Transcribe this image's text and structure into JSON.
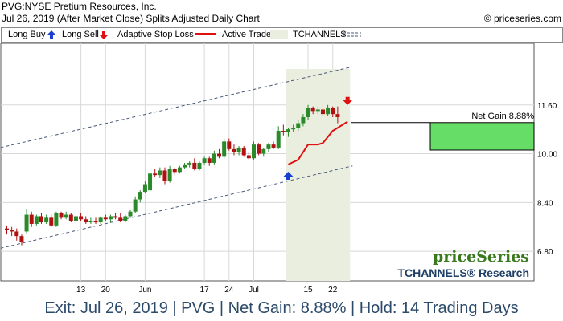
{
  "header": {
    "line1": "PVG:NYSE Pretium Resources, Inc.",
    "line2": "Jul 26, 2019 (After Market Close)  Splits Adjusted Daily Chart",
    "copyright": "© priceseries.com"
  },
  "legend": {
    "long_buy": "Long Buy",
    "long_sell": "Long Sell",
    "adaptive_stop": "Adaptive Stop Loss",
    "active_trade": "Active Trade",
    "tchannels": "TCHANNELS"
  },
  "branding": {
    "logo_text": "priceSeries",
    "research_text": "TCHANNELS® Research"
  },
  "footer": {
    "text": "Exit: Jul 26, 2019 | PVG | Net Gain: 8.88% | Hold: 14 Trading Days"
  },
  "colors": {
    "bull": "#2a8a2a",
    "bear": "#b01010",
    "stop": "#e01010",
    "buy_arrow": "#1a3fd0",
    "sell_arrow": "#e01010",
    "active_shade": "#e9eedf",
    "gain_box": "#66dd66",
    "channel": "#4a5a78"
  },
  "chart_data": {
    "type": "candlestick",
    "title": "PVG:NYSE Pretium Resources, Inc.",
    "y_ticks": [
      6.8,
      8.4,
      10.0,
      11.6
    ],
    "y_tick_labels": [
      "6.80",
      "8.40",
      "10.00",
      "11.60"
    ],
    "ylim": [
      5.83,
      13.62
    ],
    "x_ticks": [
      {
        "label": "13",
        "index": 15
      },
      {
        "label": "20",
        "index": 20
      },
      {
        "label": "Jun",
        "index": 28
      },
      {
        "label": "17",
        "index": 40
      },
      {
        "label": "24",
        "index": 45
      },
      {
        "label": "Jul",
        "index": 50
      },
      {
        "label": "15",
        "index": 61
      },
      {
        "label": "22",
        "index": 66
      }
    ],
    "grid": true,
    "candles": [
      {
        "o": 7.55,
        "h": 7.65,
        "l": 7.35,
        "c": 7.5
      },
      {
        "o": 7.5,
        "h": 7.6,
        "l": 7.3,
        "c": 7.45
      },
      {
        "o": 7.45,
        "h": 7.55,
        "l": 7.15,
        "c": 7.3
      },
      {
        "o": 7.3,
        "h": 7.35,
        "l": 7.0,
        "c": 7.1
      },
      {
        "o": 7.45,
        "h": 8.2,
        "l": 7.4,
        "c": 8.0
      },
      {
        "o": 8.0,
        "h": 8.1,
        "l": 7.6,
        "c": 7.7
      },
      {
        "o": 7.7,
        "h": 8.0,
        "l": 7.65,
        "c": 7.95
      },
      {
        "o": 7.95,
        "h": 8.05,
        "l": 7.7,
        "c": 7.75
      },
      {
        "o": 7.75,
        "h": 8.0,
        "l": 7.7,
        "c": 7.9
      },
      {
        "o": 7.9,
        "h": 8.0,
        "l": 7.6,
        "c": 7.65
      },
      {
        "o": 7.65,
        "h": 8.1,
        "l": 7.6,
        "c": 8.05
      },
      {
        "o": 8.05,
        "h": 8.1,
        "l": 7.85,
        "c": 7.9
      },
      {
        "o": 7.9,
        "h": 8.1,
        "l": 7.85,
        "c": 8.0
      },
      {
        "o": 8.0,
        "h": 8.05,
        "l": 7.75,
        "c": 7.8
      },
      {
        "o": 7.8,
        "h": 8.0,
        "l": 7.7,
        "c": 7.95
      },
      {
        "o": 7.95,
        "h": 8.05,
        "l": 7.8,
        "c": 7.85
      },
      {
        "o": 7.85,
        "h": 7.95,
        "l": 7.7,
        "c": 7.75
      },
      {
        "o": 7.75,
        "h": 7.9,
        "l": 7.7,
        "c": 7.8
      },
      {
        "o": 7.8,
        "h": 7.9,
        "l": 7.7,
        "c": 7.75
      },
      {
        "o": 7.75,
        "h": 7.95,
        "l": 7.7,
        "c": 7.9
      },
      {
        "o": 7.9,
        "h": 8.0,
        "l": 7.8,
        "c": 7.85
      },
      {
        "o": 7.85,
        "h": 8.0,
        "l": 7.75,
        "c": 7.95
      },
      {
        "o": 7.95,
        "h": 8.05,
        "l": 7.85,
        "c": 7.9
      },
      {
        "o": 7.9,
        "h": 8.05,
        "l": 7.75,
        "c": 7.8
      },
      {
        "o": 7.8,
        "h": 8.0,
        "l": 7.75,
        "c": 7.95
      },
      {
        "o": 7.95,
        "h": 8.15,
        "l": 7.9,
        "c": 8.1
      },
      {
        "o": 8.1,
        "h": 8.6,
        "l": 8.05,
        "c": 8.5
      },
      {
        "o": 8.5,
        "h": 8.8,
        "l": 8.4,
        "c": 8.75
      },
      {
        "o": 8.75,
        "h": 9.1,
        "l": 8.7,
        "c": 9.0
      },
      {
        "o": 8.8,
        "h": 9.45,
        "l": 8.75,
        "c": 9.35
      },
      {
        "o": 9.35,
        "h": 9.5,
        "l": 9.25,
        "c": 9.3
      },
      {
        "o": 9.3,
        "h": 9.55,
        "l": 9.2,
        "c": 9.45
      },
      {
        "o": 9.45,
        "h": 9.55,
        "l": 9.0,
        "c": 9.1
      },
      {
        "o": 9.1,
        "h": 9.6,
        "l": 9.05,
        "c": 9.5
      },
      {
        "o": 9.5,
        "h": 9.55,
        "l": 9.3,
        "c": 9.4
      },
      {
        "o": 9.4,
        "h": 9.6,
        "l": 9.35,
        "c": 9.55
      },
      {
        "o": 9.55,
        "h": 9.7,
        "l": 9.5,
        "c": 9.65
      },
      {
        "o": 9.65,
        "h": 9.75,
        "l": 9.55,
        "c": 9.7
      },
      {
        "o": 9.7,
        "h": 9.85,
        "l": 9.45,
        "c": 9.5
      },
      {
        "o": 9.5,
        "h": 9.75,
        "l": 9.45,
        "c": 9.7
      },
      {
        "o": 9.7,
        "h": 9.9,
        "l": 9.65,
        "c": 9.85
      },
      {
        "o": 9.85,
        "h": 9.9,
        "l": 9.6,
        "c": 9.7
      },
      {
        "o": 9.7,
        "h": 10.1,
        "l": 9.65,
        "c": 10.0
      },
      {
        "o": 10.0,
        "h": 10.15,
        "l": 9.85,
        "c": 9.9
      },
      {
        "o": 9.9,
        "h": 10.5,
        "l": 9.85,
        "c": 10.4
      },
      {
        "o": 10.4,
        "h": 10.5,
        "l": 10.1,
        "c": 10.15
      },
      {
        "o": 10.15,
        "h": 10.3,
        "l": 9.95,
        "c": 10.05
      },
      {
        "o": 10.05,
        "h": 10.25,
        "l": 9.95,
        "c": 10.2
      },
      {
        "o": 10.2,
        "h": 10.25,
        "l": 9.9,
        "c": 9.95
      },
      {
        "o": 9.95,
        "h": 10.05,
        "l": 9.8,
        "c": 9.85
      },
      {
        "o": 9.85,
        "h": 10.4,
        "l": 9.8,
        "c": 10.3
      },
      {
        "o": 10.3,
        "h": 10.35,
        "l": 9.95,
        "c": 10.0
      },
      {
        "o": 10.0,
        "h": 10.2,
        "l": 9.9,
        "c": 10.15
      },
      {
        "o": 10.15,
        "h": 10.35,
        "l": 10.05,
        "c": 10.3
      },
      {
        "o": 10.3,
        "h": 10.4,
        "l": 10.15,
        "c": 10.2
      },
      {
        "o": 10.2,
        "h": 10.9,
        "l": 10.15,
        "c": 10.75
      },
      {
        "o": 10.75,
        "h": 10.95,
        "l": 10.6,
        "c": 10.7
      },
      {
        "o": 10.7,
        "h": 10.85,
        "l": 10.55,
        "c": 10.8
      },
      {
        "o": 10.8,
        "h": 10.95,
        "l": 10.7,
        "c": 10.85
      },
      {
        "o": 10.85,
        "h": 11.1,
        "l": 10.75,
        "c": 11.0
      },
      {
        "o": 11.0,
        "h": 11.3,
        "l": 10.9,
        "c": 11.2
      },
      {
        "o": 11.2,
        "h": 11.6,
        "l": 11.1,
        "c": 11.5
      },
      {
        "o": 11.5,
        "h": 11.55,
        "l": 11.3,
        "c": 11.4
      },
      {
        "o": 11.4,
        "h": 11.55,
        "l": 11.3,
        "c": 11.45
      },
      {
        "o": 11.45,
        "h": 11.6,
        "l": 11.2,
        "c": 11.3
      },
      {
        "o": 11.3,
        "h": 11.6,
        "l": 11.25,
        "c": 11.5
      },
      {
        "o": 11.5,
        "h": 11.55,
        "l": 11.2,
        "c": 11.3
      },
      {
        "o": 11.3,
        "h": 11.55,
        "l": 11.0,
        "c": 11.2
      }
    ],
    "adaptive_stop": [
      {
        "index": 57,
        "value": 9.65
      },
      {
        "index": 59,
        "value": 9.8
      },
      {
        "index": 60,
        "value": 10.05
      },
      {
        "index": 61,
        "value": 10.3
      },
      {
        "index": 63,
        "value": 10.3
      },
      {
        "index": 64,
        "value": 10.35
      },
      {
        "index": 65,
        "value": 10.55
      },
      {
        "index": 66,
        "value": 10.75
      },
      {
        "index": 67,
        "value": 10.85
      },
      {
        "index": 68,
        "value": 10.95
      },
      {
        "index": 69,
        "value": 11.05
      }
    ],
    "long_buy_index": 57,
    "long_buy_price": 9.41,
    "long_sell_index": 69,
    "long_sell_price": 11.6,
    "active_trade": {
      "start_index": 56.5,
      "end_index": 69.5
    },
    "tchannel_upper": [
      {
        "index": 0,
        "value": 10.2
      },
      {
        "index": 70,
        "value": 12.85
      }
    ],
    "tchannel_lower": [
      {
        "index": 0,
        "value": 6.9
      },
      {
        "index": 70,
        "value": 9.6
      }
    ],
    "net_gain": {
      "label": "Net Gain 8.88%",
      "low": 10.12,
      "high": 11.02,
      "value_percent": 8.88
    },
    "hold_days": 14
  }
}
